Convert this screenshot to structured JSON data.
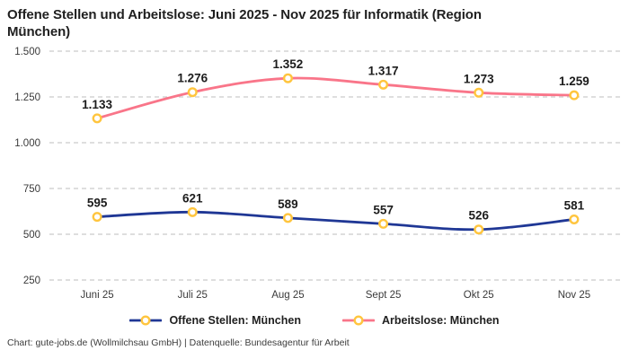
{
  "title": "Offene Stellen und Arbeitslose: Juni 2025 - Nov 2025 für Informatik (Region München)",
  "footer": "Chart: gute-jobs.de (Wollmilchsau GmbH) | Datenquelle: Bundesagentur für Arbeit",
  "colors": {
    "series_open_positions": "#1f3795",
    "series_unemployed": "#f97589",
    "marker_fill": "#ffffff",
    "marker_stroke": "#ffc53e",
    "gridline": "#cbcbcb",
    "tick_text": "#3a3a3a",
    "data_label": "#1c1c1c",
    "title_text": "#1f1f1f"
  },
  "chart_data": {
    "type": "line",
    "title": "Offene Stellen und Arbeitslose: Juni 2025 - Nov 2025 für Informatik (Region München)",
    "categories": [
      "Juni 25",
      "Juli 25",
      "Aug 25",
      "Sept 25",
      "Okt 25",
      "Nov 25"
    ],
    "series": [
      {
        "name": "Offene Stellen: München",
        "color": "#1f3795",
        "values": [
          595,
          621,
          589,
          557,
          526,
          581
        ],
        "labels": [
          "595",
          "621",
          "589",
          "557",
          "526",
          "581"
        ]
      },
      {
        "name": "Arbeitslose: München",
        "color": "#f97589",
        "values": [
          1133,
          1276,
          1352,
          1317,
          1273,
          1259
        ],
        "labels": [
          "1.133",
          "1.276",
          "1.352",
          "1.317",
          "1.273",
          "1.259"
        ]
      }
    ],
    "xlabel": "",
    "ylabel": "",
    "ylim": [
      250,
      1500
    ],
    "yticks": [
      250,
      500,
      750,
      1000,
      1250,
      1500
    ],
    "ytick_labels": [
      "250",
      "500",
      "750",
      "1.000",
      "1.250",
      "1.500"
    ],
    "grid": true,
    "grid_style": "dashed",
    "legend_position": "bottom",
    "marker": {
      "shape": "circle",
      "fill": "#ffffff",
      "stroke": "#ffc53e"
    }
  }
}
